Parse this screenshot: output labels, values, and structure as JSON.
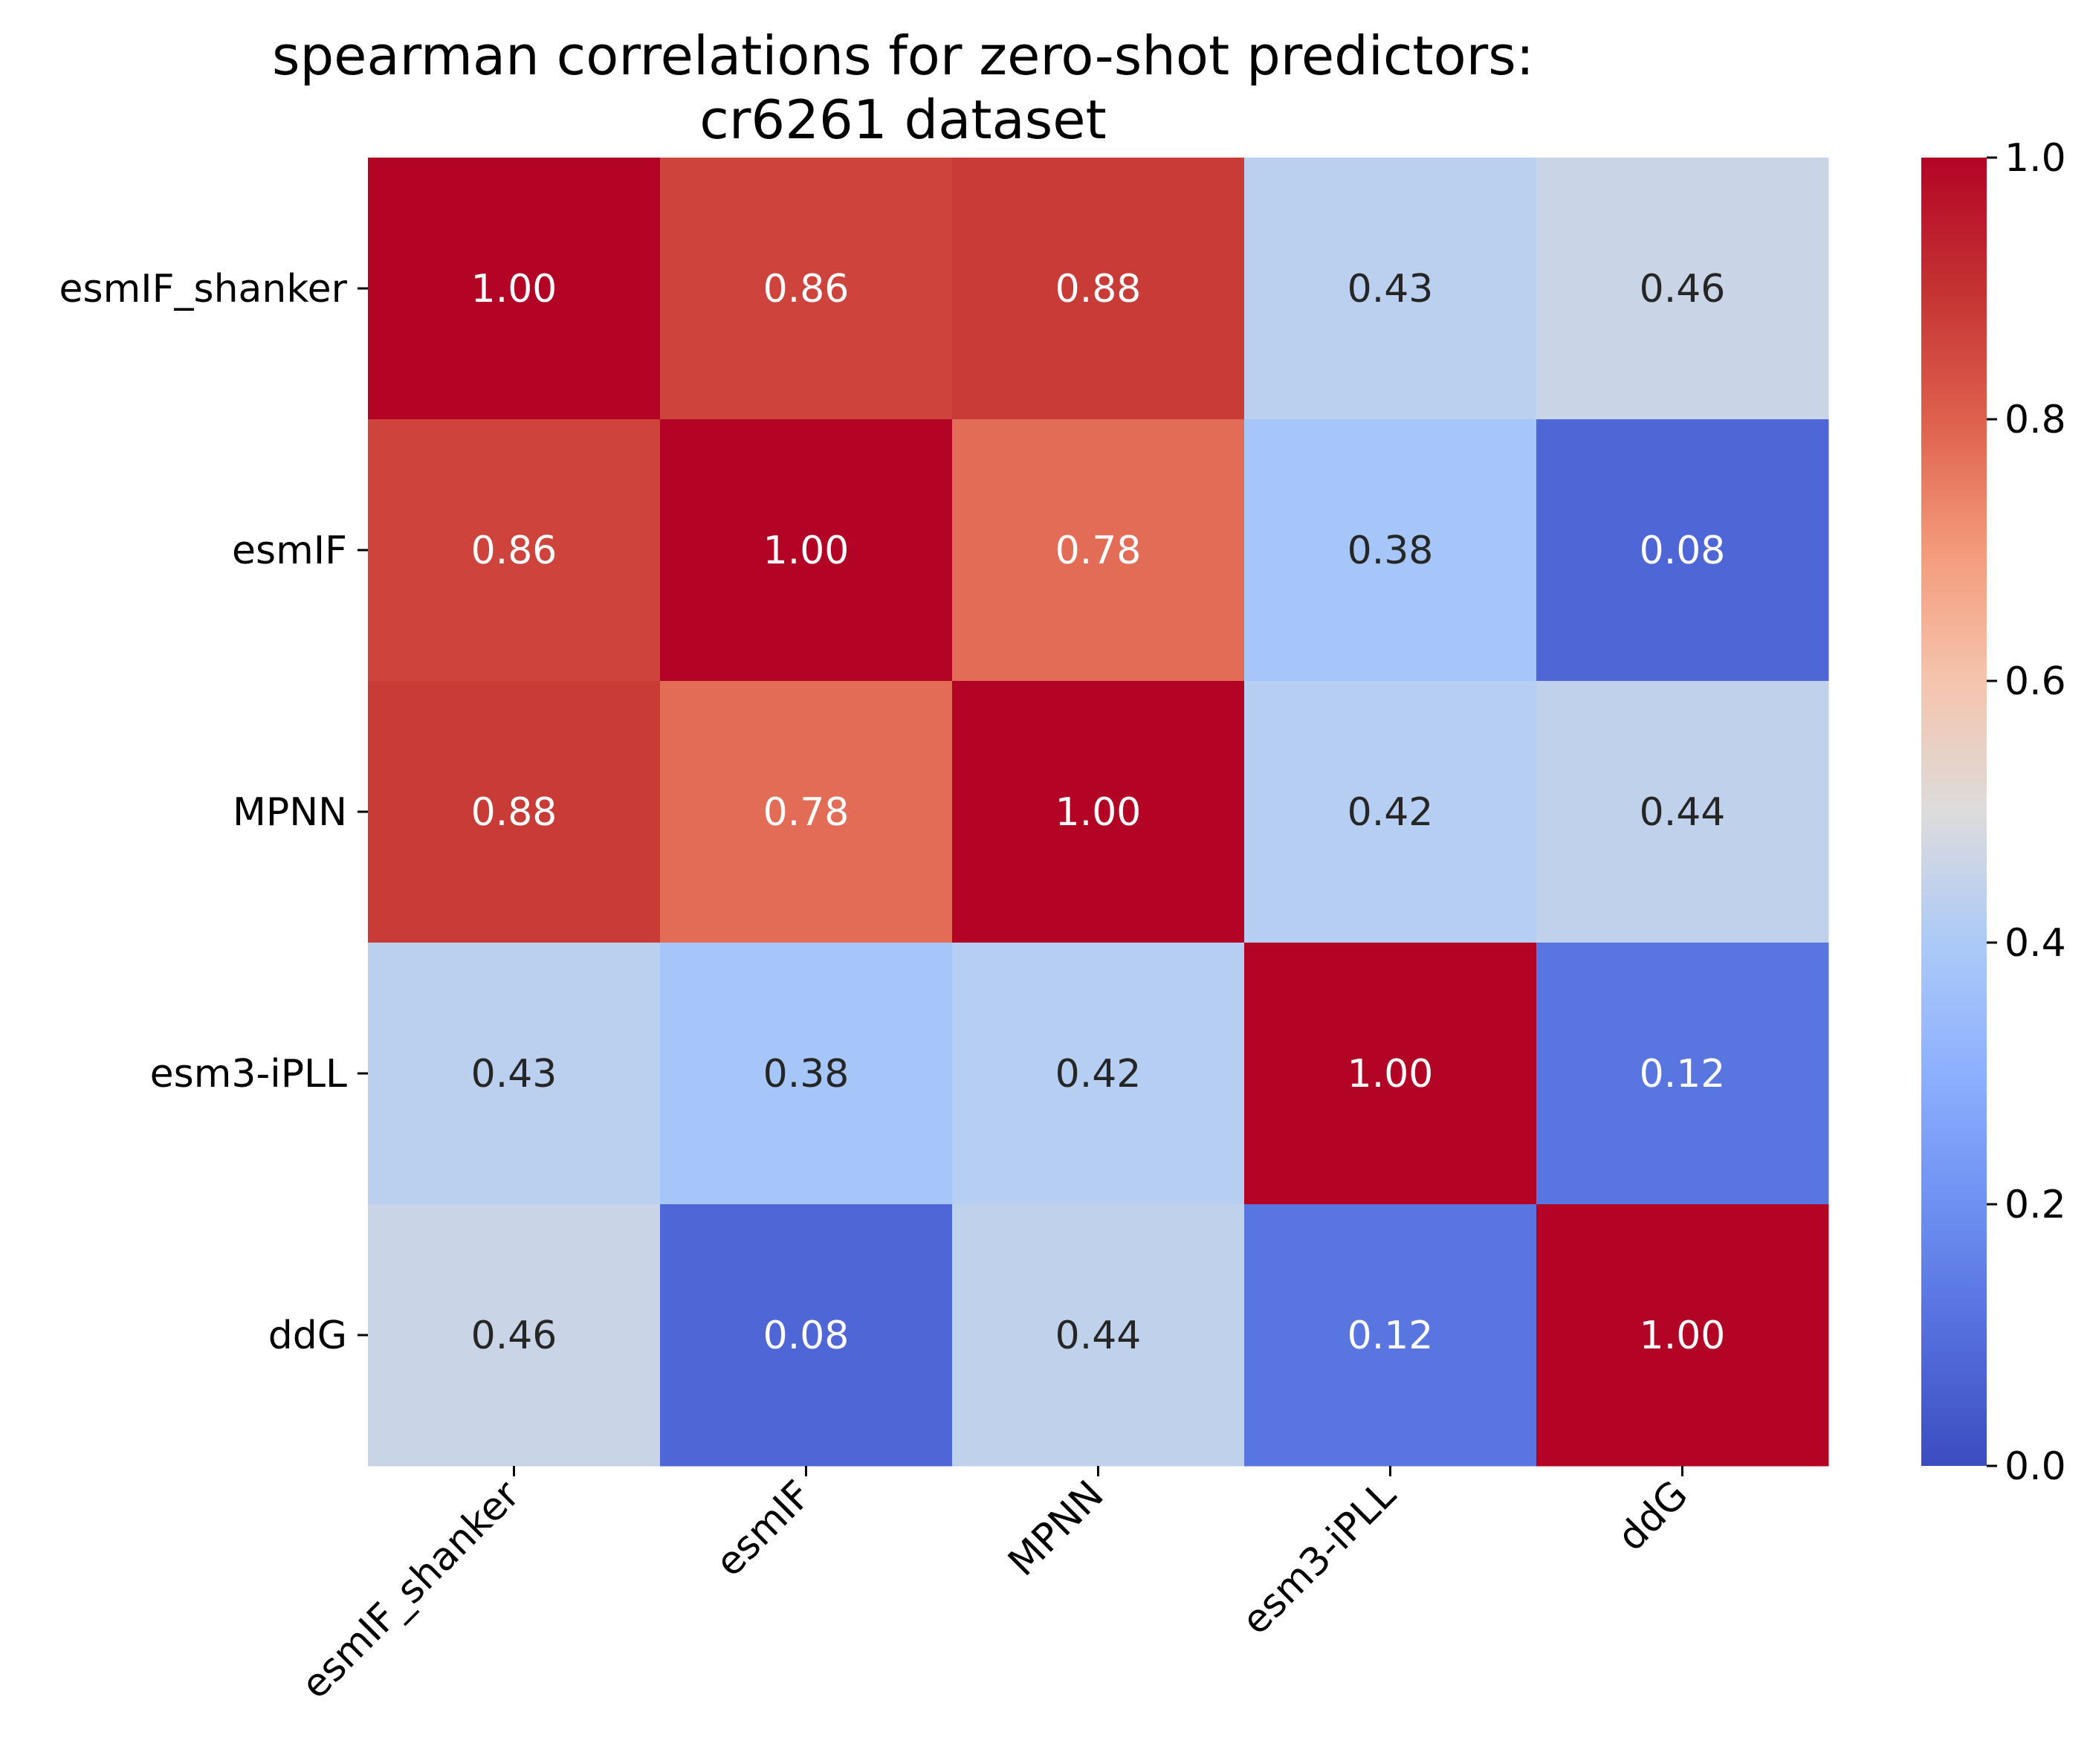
{
  "chart_data": {
    "type": "heatmap",
    "title": "spearman correlations for zero-shot predictors:\ncr6261 dataset",
    "title_lines": [
      "spearman correlations for zero-shot predictors:",
      "cr6261 dataset"
    ],
    "xlabel": "",
    "ylabel": "",
    "x_categories": [
      "esmIF_shanker",
      "esmIF",
      "MPNN",
      "esm3-iPLL",
      "ddG"
    ],
    "y_categories": [
      "esmIF_shanker",
      "esmIF",
      "MPNN",
      "esm3-iPLL",
      "ddG"
    ],
    "values": [
      [
        1.0,
        0.86,
        0.88,
        0.43,
        0.46
      ],
      [
        0.86,
        1.0,
        0.78,
        0.38,
        0.08
      ],
      [
        0.88,
        0.78,
        1.0,
        0.42,
        0.44
      ],
      [
        0.43,
        0.38,
        0.42,
        1.0,
        0.12
      ],
      [
        0.46,
        0.08,
        0.44,
        0.12,
        1.0
      ]
    ],
    "annotation_format": "0.00",
    "colormap": "coolwarm",
    "colorbar": {
      "range": [
        0.0,
        1.0
      ],
      "ticks": [
        "0.0",
        "0.2",
        "0.4",
        "0.6",
        "0.8",
        "1.0"
      ]
    },
    "grid": false
  }
}
